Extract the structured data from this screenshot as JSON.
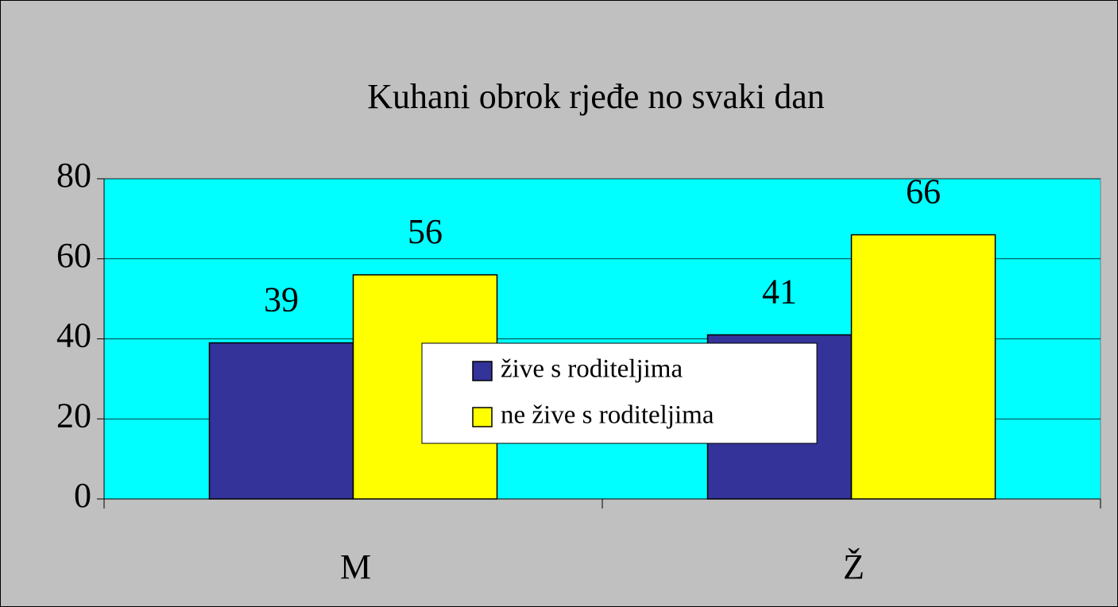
{
  "chart_data": {
    "type": "bar",
    "title": "Kuhani obrok rjeđe no svaki dan",
    "categories": [
      "M",
      "Ž"
    ],
    "series": [
      {
        "name": "žive s roditeljima",
        "color": "#333399",
        "values": [
          39,
          41
        ]
      },
      {
        "name": "ne žive s roditeljima",
        "color": "#ffff00",
        "values": [
          56,
          66
        ]
      }
    ],
    "ylim": [
      0,
      80
    ],
    "yticks": [
      0,
      20,
      40,
      60,
      80
    ],
    "grid": true
  }
}
